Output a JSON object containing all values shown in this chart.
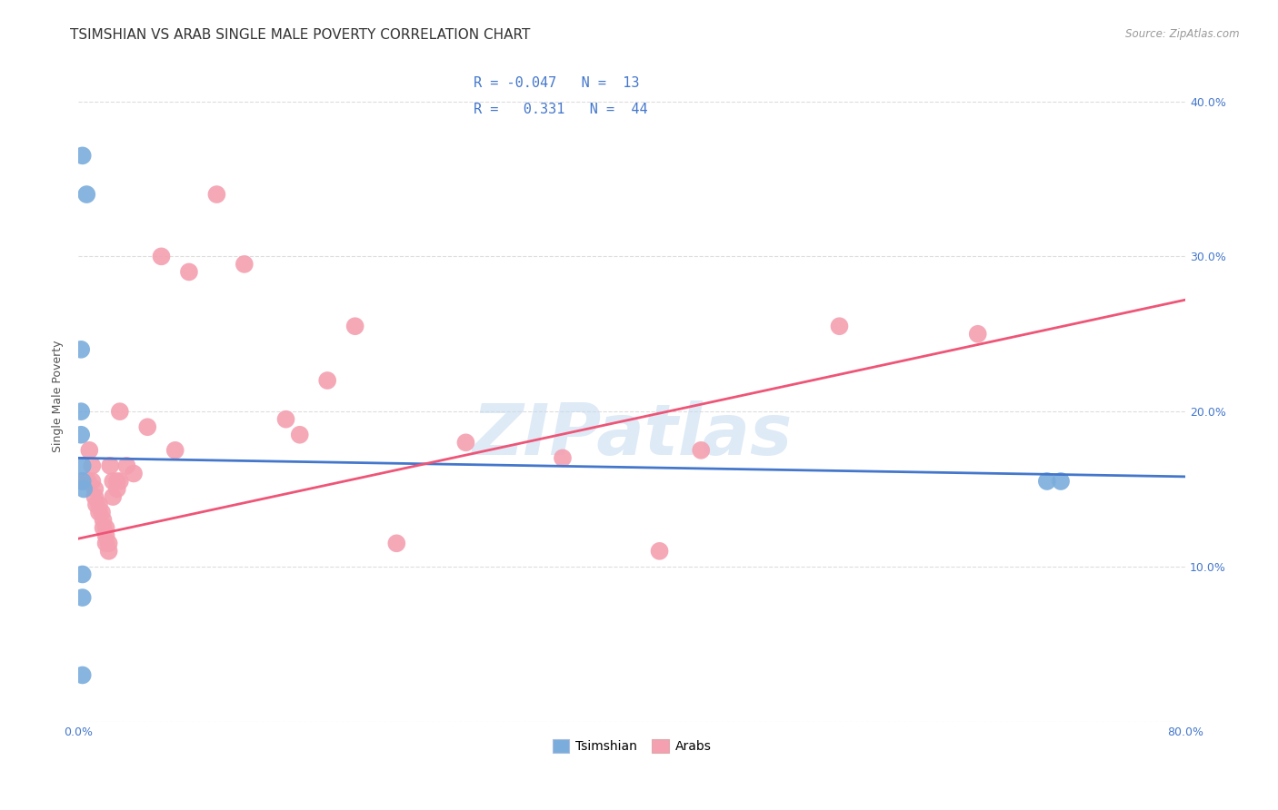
{
  "title": "TSIMSHIAN VS ARAB SINGLE MALE POVERTY CORRELATION CHART",
  "source": "Source: ZipAtlas.com",
  "ylabel": "Single Male Poverty",
  "xlim": [
    0.0,
    0.8
  ],
  "ylim": [
    0.0,
    0.42
  ],
  "xticks": [
    0.0,
    0.1,
    0.2,
    0.3,
    0.4,
    0.5,
    0.6,
    0.7,
    0.8
  ],
  "xtick_labels": [
    "0.0%",
    "",
    "",
    "",
    "",
    "",
    "",
    "",
    "80.0%"
  ],
  "yticks": [
    0.0,
    0.1,
    0.2,
    0.3,
    0.4
  ],
  "ytick_labels_left": [
    "",
    "",
    "",
    "",
    ""
  ],
  "ytick_labels_right": [
    "",
    "10.0%",
    "20.0%",
    "30.0%",
    "40.0%"
  ],
  "watermark": "ZIPatlas",
  "legend_R_tsimshian": "-0.047",
  "legend_N_tsimshian": "13",
  "legend_R_arab": "0.331",
  "legend_N_arab": "44",
  "tsimshian_color": "#7AADDC",
  "arab_color": "#F4A0B0",
  "line_tsimshian_color": "#4477CC",
  "line_arab_color": "#EE5577",
  "tsimshian_x": [
    0.003,
    0.006,
    0.002,
    0.002,
    0.002,
    0.003,
    0.003,
    0.004,
    0.003,
    0.003,
    0.003,
    0.7,
    0.71
  ],
  "tsimshian_y": [
    0.365,
    0.34,
    0.24,
    0.2,
    0.185,
    0.165,
    0.155,
    0.15,
    0.095,
    0.08,
    0.03,
    0.155,
    0.155
  ],
  "arab_x": [
    0.003,
    0.007,
    0.008,
    0.01,
    0.01,
    0.012,
    0.012,
    0.013,
    0.015,
    0.015,
    0.017,
    0.018,
    0.018,
    0.02,
    0.02,
    0.02,
    0.022,
    0.022,
    0.023,
    0.025,
    0.025,
    0.028,
    0.028,
    0.03,
    0.03,
    0.035,
    0.04,
    0.05,
    0.06,
    0.07,
    0.08,
    0.1,
    0.12,
    0.15,
    0.16,
    0.18,
    0.2,
    0.23,
    0.28,
    0.35,
    0.42,
    0.45,
    0.55,
    0.65
  ],
  "arab_y": [
    0.155,
    0.155,
    0.175,
    0.165,
    0.155,
    0.15,
    0.145,
    0.14,
    0.14,
    0.135,
    0.135,
    0.13,
    0.125,
    0.125,
    0.12,
    0.115,
    0.115,
    0.11,
    0.165,
    0.155,
    0.145,
    0.155,
    0.15,
    0.155,
    0.2,
    0.165,
    0.16,
    0.19,
    0.3,
    0.175,
    0.29,
    0.34,
    0.295,
    0.195,
    0.185,
    0.22,
    0.255,
    0.115,
    0.18,
    0.17,
    0.11,
    0.175,
    0.255,
    0.25
  ],
  "background_color": "#ffffff",
  "grid_color": "#dddddd",
  "title_fontsize": 11,
  "axis_label_fontsize": 9,
  "tick_fontsize": 9,
  "tick_color": "#4477CC"
}
